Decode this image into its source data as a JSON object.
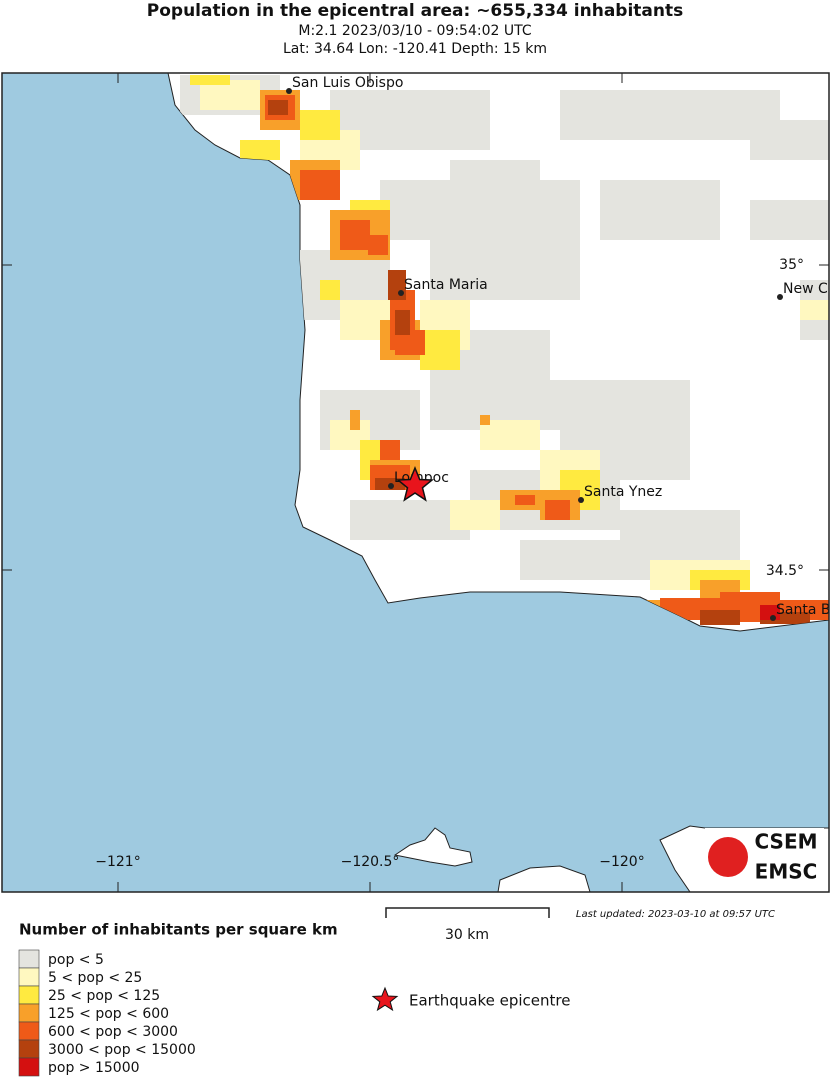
{
  "header": {
    "title": "Population in the epicentral area: ~655,334 inhabitants",
    "event": "M:2.1 2023/03/10 - 09:54:02 UTC",
    "location": "Lat: 34.64 Lon: -120.41 Depth: 15 km"
  },
  "map": {
    "cities": [
      "San Luis Obispo",
      "Santa Maria",
      "Lompoc",
      "Santa Ynez",
      "New Cuyama",
      "Santa Barbara"
    ],
    "lon_labels": [
      "−121°",
      "−120.5°",
      "−120°"
    ],
    "lat_labels": [
      "35°",
      "34.5°"
    ],
    "logo": [
      "CSEM",
      "EMSC"
    ],
    "scale": "30 km",
    "updated": "Last updated: 2023-03-10 at 09:57 UTC"
  },
  "legend": {
    "title": "Number of inhabitants per square km",
    "items": [
      {
        "label": "pop < 5",
        "color": "#e4e4df"
      },
      {
        "label": "5 < pop < 25",
        "color": "#fff8c0"
      },
      {
        "label": "25 < pop < 125",
        "color": "#ffea40"
      },
      {
        "label": "125 < pop < 600",
        "color": "#f8a02a"
      },
      {
        "label": "600 < pop < 3000",
        "color": "#ef5a18"
      },
      {
        "label": "3000 < pop < 15000",
        "color": "#b4410e"
      },
      {
        "label": "pop > 15000",
        "color": "#d41010"
      }
    ],
    "epicentre": "Earthquake epicentre"
  }
}
